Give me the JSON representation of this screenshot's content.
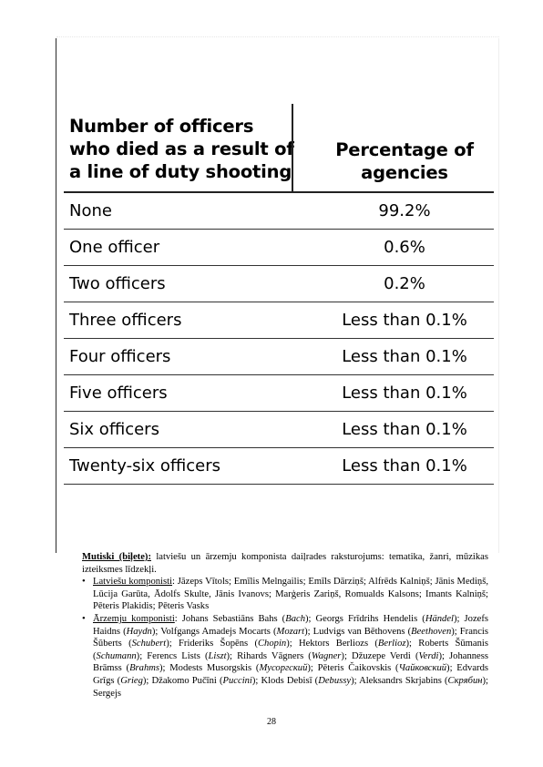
{
  "table": {
    "header_left": [
      "Number of officers",
      "who died as a result of",
      "a line of duty shooting"
    ],
    "header_right": [
      "Percentage of",
      "agencies"
    ],
    "rows": [
      {
        "label": "None",
        "value": "99.2%"
      },
      {
        "label": "One officer",
        "value": "0.6%"
      },
      {
        "label": "Two officers",
        "value": "0.2%"
      },
      {
        "label": "Three officers",
        "value": "Less than 0.1%"
      },
      {
        "label": "Four officers",
        "value": "Less than 0.1%"
      },
      {
        "label": "Five officers",
        "value": "Less than 0.1%"
      },
      {
        "label": "Six officers",
        "value": "Less than 0.1%"
      },
      {
        "label": "Twenty-six officers",
        "value": "Less than 0.1%"
      }
    ]
  },
  "body": {
    "intro_label": "Mutiski (biļete):",
    "intro_text": " latviešu un ārzemju komponista daiļrades raksturojums: tematika, žanri, mūzikas izteiksmes līdzekļi.",
    "latvian_label": "Latviešu komponisti",
    "latvian_text": ": Jāzeps Vītols; Emīlis Melngailis; Emīls Dārziņš; Alfrēds Kalniņš; Jānis Mediņš, Lūcija Garūta, Ādolfs Skulte, Jānis Ivanovs; Marģeris Zariņš, Romualds Kalsons; Imants Kalniņš; Pēteris Plakidis; Pēteris Vasks",
    "foreign_label": "Ārzemju komponisti",
    "foreign_parts": [
      ": Johans Sebastiāns Bahs (",
      "Bach",
      "); Georgs Frīdrihs Hendelis (",
      "Händel",
      "); Jozefs Haidns (",
      "Haydn",
      "); Volfgangs Amadejs Mocarts (",
      "Mozart",
      "); Ludvigs van Bēthovens (",
      "Beethoven",
      "); Francis Šūberts (",
      "Schubert",
      "); Frideriks Šopēns (",
      "Chopin",
      "); Hektors Berliozs (",
      "Berlioz",
      "); Roberts Šūmanis (",
      "Schumann",
      "); Ferencs Lists (",
      "Liszt",
      "); Rihards Vāgners (",
      "Wagner",
      "); Džuzepe Verdi (",
      "Verdi",
      "); Johanness Brāmss (",
      "Brahms",
      "); Modests Musorgskis (",
      "Мусоргский",
      "); Pēteris Čaikovskis (",
      "Чайковский",
      "); Edvards Grīgs (",
      "Grieg",
      "); Džakomo Pučīni (",
      "Puccini",
      "); Klods Debisī (",
      "Debussy",
      "); Aleksandrs Skrjabins (",
      "Скрябин",
      "); Sergejs"
    ]
  },
  "page_number": "28"
}
